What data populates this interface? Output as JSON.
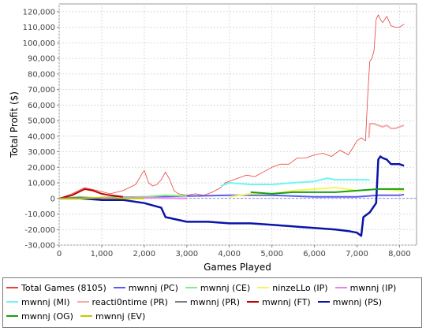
{
  "chart_data": {
    "type": "line",
    "title": "",
    "xlabel": "Games Played",
    "ylabel": "Total Profit ($)",
    "xlim": [
      0,
      8400
    ],
    "ylim": [
      -30000,
      125000
    ],
    "xticks": [
      0,
      1000,
      2000,
      3000,
      4000,
      5000,
      6000,
      7000,
      8000
    ],
    "yticks": [
      -30000,
      -20000,
      -10000,
      0,
      10000,
      20000,
      30000,
      40000,
      50000,
      60000,
      70000,
      80000,
      90000,
      100000,
      110000,
      120000
    ],
    "xtick_labels": [
      "0",
      "1,000",
      "2,000",
      "3,000",
      "4,000",
      "5,000",
      "6,000",
      "7,000",
      "8,000"
    ],
    "ytick_labels": [
      "-30,000",
      "-20,000",
      "-10,000",
      "0",
      "10,000",
      "20,000",
      "30,000",
      "40,000",
      "50,000",
      "60,000",
      "70,000",
      "80,000",
      "90,000",
      "100,000",
      "110,000",
      "120,000"
    ],
    "grid": true,
    "legend_position": "bottom",
    "series": [
      {
        "name": "Total Games (8105)",
        "color": "#e8413c",
        "width": 0.8,
        "x": [
          0,
          300,
          600,
          900,
          1200,
          1500,
          1800,
          1950,
          2000,
          2100,
          2200,
          2300,
          2400,
          2500,
          2600,
          2700,
          2800,
          3000,
          3200,
          3400,
          3600,
          3800,
          3900,
          4000,
          4200,
          4400,
          4600,
          4800,
          5000,
          5200,
          5400,
          5600,
          5800,
          6000,
          6200,
          6400,
          6600,
          6800,
          7000,
          7100,
          7200,
          7250,
          7300,
          7350,
          7400,
          7450,
          7500,
          7550,
          7600,
          7700,
          7800,
          7900,
          8000,
          8105
        ],
        "y": [
          0,
          3000,
          7000,
          5000,
          3000,
          5000,
          9000,
          16000,
          18000,
          10000,
          8000,
          9000,
          12000,
          17000,
          12000,
          5000,
          3000,
          2000,
          3000,
          2000,
          4000,
          7000,
          10000,
          11000,
          13000,
          15000,
          14000,
          17000,
          20000,
          22000,
          22000,
          26000,
          26000,
          28000,
          29000,
          27000,
          31000,
          28000,
          37000,
          39000,
          37000,
          65000,
          88000,
          90000,
          95000,
          115000,
          118000,
          115000,
          113000,
          117000,
          111000,
          110000,
          110000,
          112000
        ]
      },
      {
        "name": "mwnnj (PC)",
        "color": "#5b5bf0",
        "width": 2,
        "x": [
          0,
          1000,
          2000,
          3000,
          4000,
          5000,
          6000,
          7000,
          7500,
          8000,
          8105
        ],
        "y": [
          0,
          500,
          1000,
          1500,
          2000,
          2000,
          1000,
          1000,
          2000,
          2000,
          2500
        ]
      },
      {
        "name": "mwnnj (CE)",
        "color": "#7ef07e",
        "width": 2,
        "x": [
          0,
          500,
          1000,
          1500,
          2000,
          2500,
          3000
        ],
        "y": [
          0,
          1000,
          0,
          500,
          1000,
          2000,
          1500
        ]
      },
      {
        "name": "ninzeLLo (IP)",
        "color": "#f5f560",
        "width": 2,
        "x": [
          4000,
          4500,
          5000,
          5500,
          6000,
          6500,
          7000,
          7500,
          8000,
          8105
        ],
        "y": [
          1000,
          3000,
          3000,
          5000,
          6000,
          7000,
          5000,
          6000,
          5000,
          5000
        ]
      },
      {
        "name": "mwnnj (IP)",
        "color": "#ef7ff0",
        "width": 2,
        "x": [
          0,
          1000,
          2000,
          3000
        ],
        "y": [
          0,
          0,
          500,
          0
        ]
      },
      {
        "name": "mwnnj (MI)",
        "color": "#6ff5f5",
        "width": 2,
        "x": [
          3800,
          4000,
          4500,
          5000,
          5500,
          6000,
          6300,
          6500,
          7000,
          7300
        ],
        "y": [
          8000,
          10000,
          9000,
          9000,
          10000,
          11000,
          13000,
          12000,
          12000,
          12000
        ]
      },
      {
        "name": "reacti0ntime (PR)",
        "color": "#f5aaaa",
        "width": 2,
        "x": [
          7280,
          7300,
          7400,
          7500,
          7600,
          7700,
          7800,
          7900,
          8000,
          8105
        ],
        "y": [
          39000,
          48000,
          48000,
          47000,
          46000,
          47000,
          45000,
          45000,
          46000,
          47000
        ]
      },
      {
        "name": "mwnnj (PR)",
        "color": "#808080",
        "width": 2,
        "x": [
          0,
          500,
          1000
        ],
        "y": [
          0,
          500,
          0
        ]
      },
      {
        "name": "mwnnj (FT)",
        "color": "#c00000",
        "width": 2,
        "x": [
          0,
          300,
          600,
          800,
          1000,
          1200,
          1500
        ],
        "y": [
          0,
          2000,
          6000,
          5000,
          3000,
          2000,
          1000
        ]
      },
      {
        "name": "mwnnj (PS)",
        "color": "#0a14a8",
        "width": 2.5,
        "x": [
          0,
          500,
          1000,
          1500,
          2000,
          2400,
          2500,
          3000,
          3500,
          4000,
          4500,
          5000,
          5500,
          6000,
          6500,
          6800,
          7000,
          7100,
          7150,
          7200,
          7300,
          7400,
          7450,
          7500,
          7550,
          7600,
          7700,
          7800,
          8000,
          8105
        ],
        "y": [
          0,
          0,
          -1000,
          -1000,
          -3000,
          -6000,
          -12000,
          -15000,
          -15000,
          -16000,
          -16000,
          -17000,
          -18000,
          -19000,
          -20000,
          -21000,
          -22000,
          -24000,
          -12000,
          -11000,
          -9000,
          -5000,
          -3000,
          25000,
          27000,
          26000,
          25000,
          22000,
          22000,
          21000
        ]
      },
      {
        "name": "mwnnj (OG)",
        "color": "#14a014",
        "width": 2,
        "x": [
          4500,
          5000,
          5500,
          6000,
          6500,
          7000,
          7500,
          8000,
          8105
        ],
        "y": [
          4000,
          3000,
          4000,
          4000,
          4000,
          5000,
          6000,
          6000,
          6000
        ]
      },
      {
        "name": "mwnnj (EV)",
        "color": "#c8c800",
        "width": 2,
        "x": [
          0,
          500,
          1000,
          1500,
          2000
        ],
        "y": [
          0,
          0,
          500,
          0,
          0
        ]
      }
    ]
  }
}
